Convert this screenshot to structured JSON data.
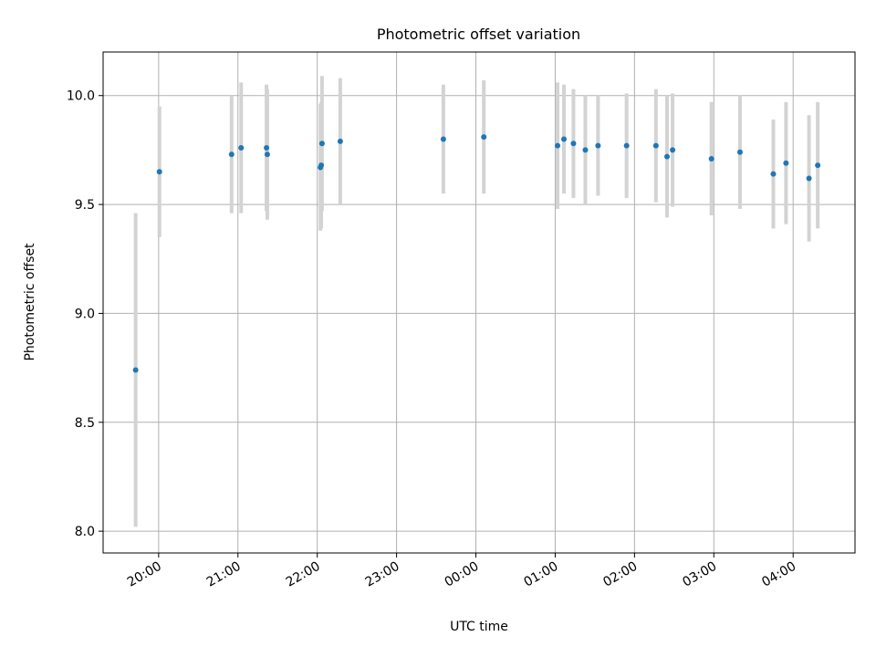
{
  "chart_data": {
    "type": "scatter",
    "title": "Photometric offset variation",
    "xlabel": "UTC time",
    "ylabel": "Photometric offset",
    "x_unit": "hours (UTC, continues past midnight)",
    "xlim": [
      19.3,
      28.78
    ],
    "ylim": [
      7.9,
      10.2
    ],
    "xticks": [
      {
        "value": 20,
        "label": "20:00"
      },
      {
        "value": 21,
        "label": "21:00"
      },
      {
        "value": 22,
        "label": "22:00"
      },
      {
        "value": 23,
        "label": "23:00"
      },
      {
        "value": 24,
        "label": "00:00"
      },
      {
        "value": 25,
        "label": "01:00"
      },
      {
        "value": 26,
        "label": "02:00"
      },
      {
        "value": 27,
        "label": "03:00"
      },
      {
        "value": 28,
        "label": "04:00"
      }
    ],
    "yticks": [
      {
        "value": 8.0,
        "label": "8.0"
      },
      {
        "value": 8.5,
        "label": "8.5"
      },
      {
        "value": 9.0,
        "label": "9.0"
      },
      {
        "value": 9.5,
        "label": "9.5"
      },
      {
        "value": 10.0,
        "label": "10.0"
      }
    ],
    "grid": true,
    "legend": "none",
    "series": [
      {
        "points": [
          {
            "x": 19.71,
            "y": 8.74,
            "err": 0.72
          },
          {
            "x": 20.01,
            "y": 9.65,
            "err": 0.3
          },
          {
            "x": 20.92,
            "y": 9.73,
            "err": 0.27
          },
          {
            "x": 21.04,
            "y": 9.76,
            "err": 0.3
          },
          {
            "x": 21.36,
            "y": 9.76,
            "err": 0.29
          },
          {
            "x": 21.37,
            "y": 9.73,
            "err": 0.3
          },
          {
            "x": 22.04,
            "y": 9.67,
            "err": 0.29
          },
          {
            "x": 22.05,
            "y": 9.68,
            "err": 0.29
          },
          {
            "x": 22.06,
            "y": 9.78,
            "err": 0.31
          },
          {
            "x": 22.29,
            "y": 9.79,
            "err": 0.29
          },
          {
            "x": 23.59,
            "y": 9.8,
            "err": 0.25
          },
          {
            "x": 24.1,
            "y": 9.81,
            "err": 0.26
          },
          {
            "x": 25.03,
            "y": 9.77,
            "err": 0.29
          },
          {
            "x": 25.11,
            "y": 9.8,
            "err": 0.25
          },
          {
            "x": 25.23,
            "y": 9.78,
            "err": 0.25
          },
          {
            "x": 25.38,
            "y": 9.75,
            "err": 0.25
          },
          {
            "x": 25.54,
            "y": 9.77,
            "err": 0.23
          },
          {
            "x": 25.9,
            "y": 9.77,
            "err": 0.24
          },
          {
            "x": 26.27,
            "y": 9.77,
            "err": 0.26
          },
          {
            "x": 26.41,
            "y": 9.72,
            "err": 0.28
          },
          {
            "x": 26.48,
            "y": 9.75,
            "err": 0.26
          },
          {
            "x": 26.97,
            "y": 9.71,
            "err": 0.26
          },
          {
            "x": 27.33,
            "y": 9.74,
            "err": 0.26
          },
          {
            "x": 27.75,
            "y": 9.64,
            "err": 0.25
          },
          {
            "x": 27.91,
            "y": 9.69,
            "err": 0.28
          },
          {
            "x": 28.2,
            "y": 9.62,
            "err": 0.29
          },
          {
            "x": 28.31,
            "y": 9.68,
            "err": 0.29
          }
        ]
      }
    ],
    "colors": {
      "marker": "#1f77b4",
      "errorbar": "#d3d3d3",
      "grid": "#b0b0b0",
      "axes": "#000000"
    }
  }
}
